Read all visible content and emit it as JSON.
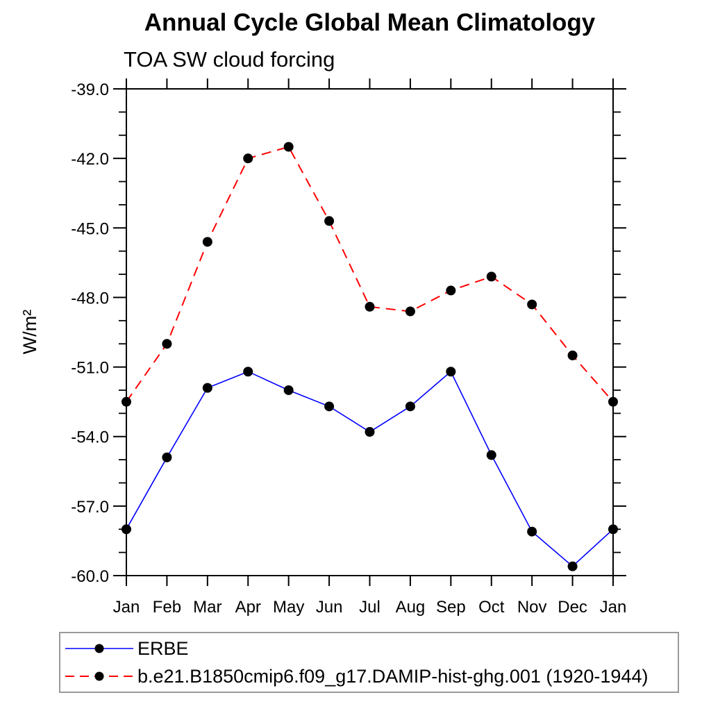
{
  "chart_data": {
    "type": "line",
    "title": "Annual Cycle Global Mean Climatology",
    "subtitle": "TOA SW cloud forcing",
    "ylabel": "W/m²",
    "xlabel": "",
    "categories": [
      "Jan",
      "Feb",
      "Mar",
      "Apr",
      "May",
      "Jun",
      "Jul",
      "Aug",
      "Sep",
      "Oct",
      "Nov",
      "Dec",
      "Jan"
    ],
    "ylim": [
      -60.0,
      -39.0
    ],
    "ytick_major_labels": [
      "-39.0",
      "-42.0",
      "-45.0",
      "-48.0",
      "-51.0",
      "-54.0",
      "-57.0",
      "-60.0"
    ],
    "ytick_major_values": [
      -39.0,
      -42.0,
      -45.0,
      -48.0,
      -51.0,
      -54.0,
      -57.0,
      -60.0
    ],
    "ytick_minor_step": 1.0,
    "grid": "off",
    "legend_position": "bottom-left-box",
    "frame_color": "#000000",
    "series": [
      {
        "name": "ERBE",
        "color": "#0000ff",
        "line_style": "solid",
        "marker": "circle",
        "marker_color": "#000000",
        "values": [
          -58.0,
          -54.9,
          -51.9,
          -51.2,
          -52.0,
          -52.7,
          -53.8,
          -52.7,
          -51.2,
          -54.8,
          -58.1,
          -59.6,
          -58.0
        ]
      },
      {
        "name": "b.e21.B1850cmip6.f09_g17.DAMIP-hist-ghg.001 (1920-1944)",
        "color": "#ff0000",
        "line_style": "dashed",
        "marker": "circle",
        "marker_color": "#000000",
        "values": [
          -52.5,
          -50.0,
          -45.6,
          -42.0,
          -41.5,
          -44.7,
          -48.4,
          -48.6,
          -47.7,
          -47.1,
          -48.3,
          -50.5,
          -52.5
        ]
      }
    ]
  }
}
